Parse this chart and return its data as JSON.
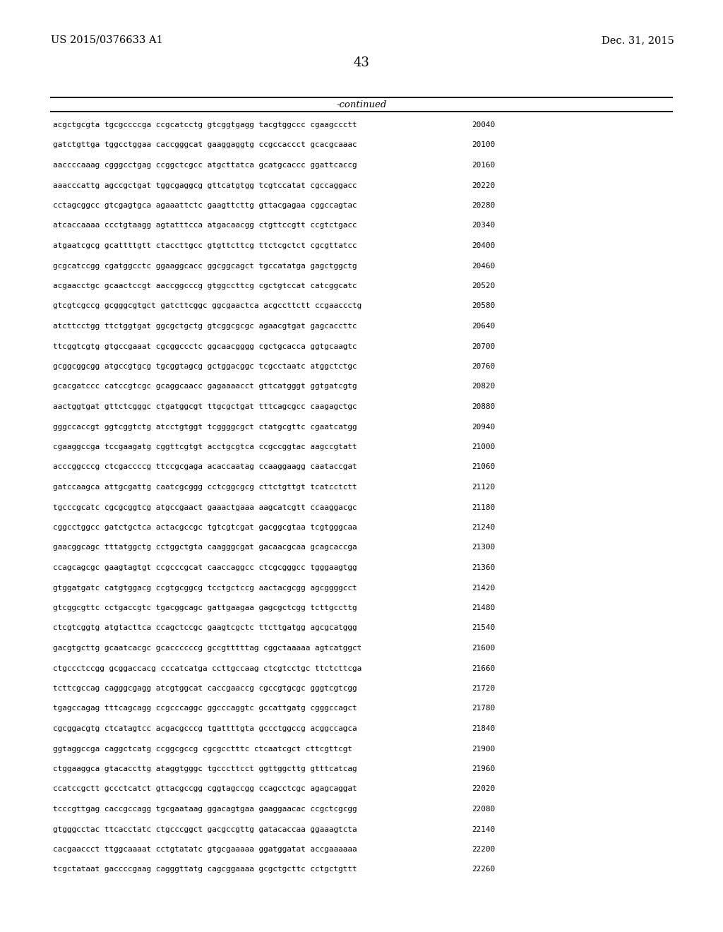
{
  "patent_number": "US 2015/0376633 A1",
  "date": "Dec. 31, 2015",
  "page_number": "43",
  "continued_label": "-continued",
  "background_color": "#ffffff",
  "text_color": "#000000",
  "sequence_lines": [
    [
      "acgctgcgta tgcgccccga ccgcatcctg gtcggtgagg tacgtggccc cgaagccctt",
      "20040"
    ],
    [
      "gatctgttga tggcctggaa caccgggcat gaaggaggtg ccgccaccct gcacgcaaac",
      "20100"
    ],
    [
      "aaccccaaag cgggcctgag ccggctcgcc atgcttatca gcatgcaccc ggattcaccg",
      "20160"
    ],
    [
      "aaacccattg agccgctgat tggcgaggcg gttcatgtgg tcgtccatat cgccaggacc",
      "20220"
    ],
    [
      "cctagcggcc gtcgagtgca agaaattctc gaagttcttg gttacgagaa cggccagtac",
      "20280"
    ],
    [
      "atcaccaaaa ccctgtaagg agtatttcca atgacaacgg ctgttccgtt ccgtctgacc",
      "20340"
    ],
    [
      "atgaatcgcg gcattttgtt ctaccttgcc gtgttcttcg ttctcgctct cgcgttatcc",
      "20400"
    ],
    [
      "gcgcatccgg cgatggcctc ggaaggcacc ggcggcagct tgccatatga gagctggctg",
      "20460"
    ],
    [
      "acgaacctgc gcaactccgt aaccggcccg gtggccttcg cgctgtccat catcggcatc",
      "20520"
    ],
    [
      "gtcgtcgccg gcgggcgtgct gatcttcggc ggcgaactca acgccttctt ccgaaccctg",
      "20580"
    ],
    [
      "atcttcctgg ttctggtgat ggcgctgctg gtcggcgcgc agaacgtgat gagcaccttc",
      "20640"
    ],
    [
      "ttcggtcgtg gtgccgaaat cgcggccctc ggcaacgggg cgctgcacca ggtgcaagtc",
      "20700"
    ],
    [
      "gcggcggcgg atgccgtgcg tgcggtagcg gctggacggc tcgcctaatc atggctctgc",
      "20760"
    ],
    [
      "gcacgatccc catccgtcgc gcaggcaacc gagaaaacct gttcatgggt ggtgatcgtg",
      "20820"
    ],
    [
      "aactggtgat gttctcgggc ctgatggcgt ttgcgctgat tttcagcgcc caagagctgc",
      "20880"
    ],
    [
      "gggccaccgt ggtcggtctg atcctgtggt tcggggcgct ctatgcgttc cgaatcatgg",
      "20940"
    ],
    [
      "cgaaggccga tccgaagatg cggttcgtgt acctgcgtca ccgccggtac aagccgtatt",
      "21000"
    ],
    [
      "acccggcccg ctcgaccccg ttccgcgaga acaccaatag ccaaggaagg caataccgat",
      "21060"
    ],
    [
      "gatccaagca attgcgattg caatcgcggg cctcggcgcg cttctgttgt tcatcctctt",
      "21120"
    ],
    [
      "tgcccgcatc cgcgcggtcg atgccgaact gaaactgaaa aagcatcgtt ccaaggacgc",
      "21180"
    ],
    [
      "cggcctggcc gatctgctca actacgccgc tgtcgtcgat gacggcgtaa tcgtgggcaa",
      "21240"
    ],
    [
      "gaacggcagc tttatggctg cctggctgta caagggcgat gacaacgcaa gcagcaccga",
      "21300"
    ],
    [
      "ccagcagcgc gaagtagtgt ccgcccgcat caaccaggcc ctcgcgggcc tgggaagtgg",
      "21360"
    ],
    [
      "gtggatgatc catgtggacg ccgtgcggcg tcctgctccg aactacgcgg agcggggcct",
      "21420"
    ],
    [
      "gtcggcgttc cctgaccgtc tgacggcagc gattgaagaa gagcgctcgg tcttgccttg",
      "21480"
    ],
    [
      "ctcgtcggtg atgtacttca ccagctccgc gaagtcgctc ttcttgatgg agcgcatggg",
      "21540"
    ],
    [
      "gacgtgcttg gcaatcacgc gcaccccccg gccgtttttag cggctaaaaa agtcatggct",
      "21600"
    ],
    [
      "ctgccctccgg gcggaccacg cccatcatga ccttgccaag ctcgtcctgc ttctcttcga",
      "21660"
    ],
    [
      "tcttcgccag cagggcgagg atcgtggcat caccgaaccg cgccgtgcgc gggtcgtcgg",
      "21720"
    ],
    [
      "tgagccagag tttcagcagg ccgcccaggc ggcccaggtc gccattgatg cgggccagct",
      "21780"
    ],
    [
      "cgcggacgtg ctcatagtcc acgacgcccg tgattttgta gccctggccg acggccagca",
      "21840"
    ],
    [
      "ggtaggccga caggctcatg ccggcgccg cgcgcctttc ctcaatcgct cttcgttcgt",
      "21900"
    ],
    [
      "ctggaaggca gtacaccttg ataggtgggc tgcccttcct ggttggcttg gtttcatcag",
      "21960"
    ],
    [
      "ccatccgctt gccctcatct gttacgccgg cggtagccgg ccagcctcgc agagcaggat",
      "22020"
    ],
    [
      "tcccgttgag caccgccagg tgcgaataag ggacagtgaa gaaggaacac ccgctcgcgg",
      "22080"
    ],
    [
      "gtgggcctac ttcacctatc ctgcccggct gacgccgttg gatacaccaa ggaaagtcta",
      "22140"
    ],
    [
      "cacgaaccct ttggcaaaat cctgtatatc gtgcgaaaaa ggatggatat accgaaaaaa",
      "22200"
    ],
    [
      "tcgctataat gaccccgaag cagggttatg cagcggaaaa gcgctgcttc cctgctgttt",
      "22260"
    ]
  ]
}
